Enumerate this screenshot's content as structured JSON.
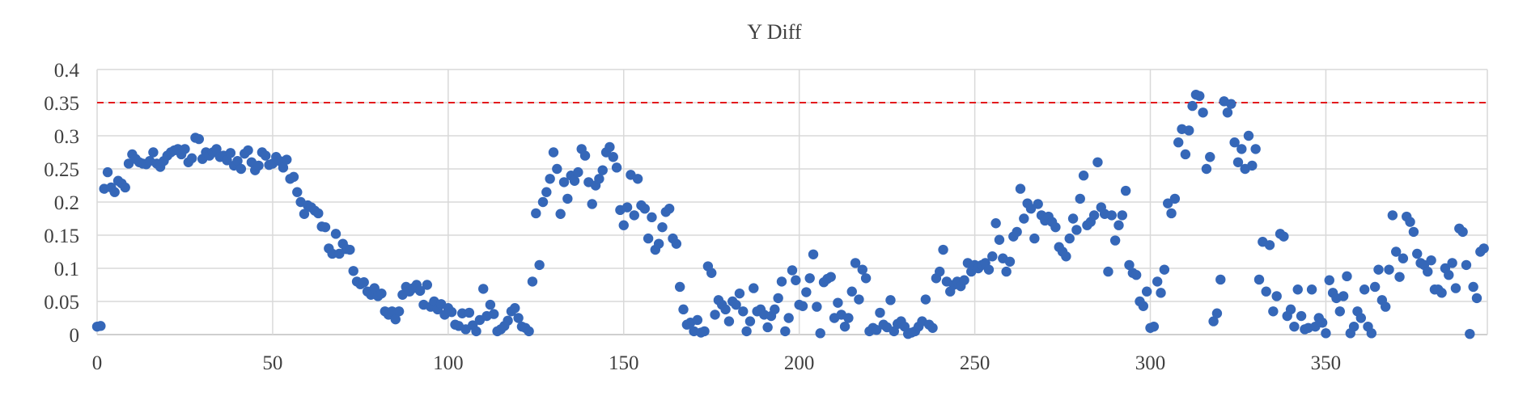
{
  "chart_data": {
    "type": "scatter",
    "title": "Y Diff",
    "xlabel": "",
    "ylabel": "",
    "xlim": [
      0,
      396
    ],
    "ylim": [
      0,
      0.4
    ],
    "x_ticks": [
      0,
      50,
      100,
      150,
      200,
      250,
      300,
      350
    ],
    "x_tick_labels": [
      "0",
      "50",
      "100",
      "150",
      "200",
      "250",
      "300",
      "350"
    ],
    "y_ticks": [
      0,
      0.05,
      0.1,
      0.15,
      0.2,
      0.25,
      0.3,
      0.35,
      0.4
    ],
    "y_tick_labels": [
      "0",
      "0.05",
      "0.1",
      "0.15",
      "0.2",
      "0.25",
      "0.3",
      "0.35",
      "0.4"
    ],
    "grid": true,
    "legend": "none",
    "threshold": 0.35,
    "colors": {
      "points": "#3567b8",
      "threshold": "#e31a1c",
      "grid": "#d9d9d9"
    },
    "series": [
      {
        "x": [
          0,
          1,
          2,
          3,
          4,
          5,
          6,
          7,
          8,
          9,
          10,
          11,
          12,
          13,
          14,
          15,
          16,
          17,
          18,
          19,
          20,
          21,
          22,
          23,
          24,
          25,
          26,
          27,
          28,
          29,
          30,
          31,
          32,
          33,
          34,
          35,
          36,
          37,
          38,
          39,
          40,
          41,
          42,
          43,
          44,
          45,
          46,
          47,
          48,
          49,
          50,
          51,
          52,
          53,
          54,
          55,
          56,
          57,
          58,
          59,
          60,
          61,
          62,
          63,
          64,
          65,
          66,
          67,
          68,
          69,
          70,
          71,
          72,
          73,
          74,
          75,
          76,
          77,
          78,
          79,
          80,
          81,
          82,
          83,
          84,
          85,
          86,
          87,
          88,
          89,
          90,
          91,
          92,
          93,
          94,
          95,
          96,
          97,
          98,
          99,
          100,
          101,
          102,
          103,
          104,
          105,
          106,
          107,
          108,
          109,
          110,
          111,
          112,
          113,
          114,
          115,
          116,
          117,
          118,
          119,
          120,
          121,
          122,
          123,
          124,
          125,
          126,
          127,
          128,
          129,
          130,
          131,
          132,
          133,
          134,
          135,
          136,
          137,
          138,
          139,
          140,
          141,
          142,
          143,
          144,
          145,
          146,
          147,
          148,
          149,
          150,
          151,
          152,
          153,
          154,
          155,
          156,
          157,
          158,
          159,
          160,
          161,
          162,
          163,
          164,
          165,
          166,
          167,
          168,
          169,
          170,
          171,
          172,
          173,
          174,
          175,
          176,
          177,
          178,
          179,
          180,
          181,
          182,
          183,
          184,
          185,
          186,
          187,
          188,
          189,
          190,
          191,
          192,
          193,
          194,
          195,
          196,
          197,
          198,
          199,
          200,
          201,
          202,
          203,
          204,
          205,
          206,
          207,
          208,
          209,
          210,
          211,
          212,
          213,
          214,
          215,
          216,
          217,
          218,
          219,
          220,
          221,
          222,
          223,
          224,
          225,
          226,
          227,
          228,
          229,
          230,
          231,
          232,
          233,
          234,
          235,
          236,
          237,
          238,
          239,
          240,
          241,
          242,
          243,
          244,
          245,
          246,
          247,
          248,
          249,
          250,
          251,
          252,
          253,
          254,
          255,
          256,
          257,
          258,
          259,
          260,
          261,
          262,
          263,
          264,
          265,
          266,
          267,
          268,
          269,
          270,
          271,
          272,
          273,
          274,
          275,
          276,
          277,
          278,
          279,
          280,
          281,
          282,
          283,
          284,
          285,
          286,
          287,
          288,
          289,
          290,
          291,
          292,
          293,
          294,
          295,
          296,
          297,
          298,
          299,
          300,
          301,
          302,
          303,
          304,
          305,
          306,
          307,
          308,
          309,
          310,
          311,
          312,
          313,
          314,
          315,
          316,
          317,
          318,
          319,
          320,
          321,
          322,
          323,
          324,
          325,
          326,
          327,
          328,
          329,
          330,
          331,
          332,
          333,
          334,
          335,
          336,
          337,
          338,
          339,
          340,
          341,
          342,
          343,
          344,
          345,
          346,
          347,
          348,
          349,
          350,
          351,
          352,
          353,
          354,
          355,
          356,
          357,
          358,
          359,
          360,
          361,
          362,
          363,
          364,
          365,
          366,
          367,
          368,
          369,
          370,
          371,
          372,
          373,
          374,
          375,
          376,
          377,
          378,
          379,
          380,
          381,
          382,
          383,
          384,
          385,
          386,
          387,
          388,
          389,
          390,
          391,
          392,
          393,
          394,
          395
        ],
        "y": [
          0.012,
          0.013,
          0.22,
          0.245,
          0.222,
          0.215,
          0.232,
          0.228,
          0.222,
          0.258,
          0.272,
          0.265,
          0.26,
          0.258,
          0.257,
          0.262,
          0.275,
          0.258,
          0.253,
          0.262,
          0.27,
          0.275,
          0.278,
          0.28,
          0.272,
          0.28,
          0.26,
          0.266,
          0.297,
          0.295,
          0.265,
          0.275,
          0.27,
          0.275,
          0.28,
          0.268,
          0.27,
          0.263,
          0.274,
          0.255,
          0.262,
          0.25,
          0.273,
          0.278,
          0.26,
          0.248,
          0.255,
          0.275,
          0.27,
          0.256,
          0.258,
          0.268,
          0.262,
          0.252,
          0.264,
          0.235,
          0.238,
          0.215,
          0.2,
          0.182,
          0.195,
          0.192,
          0.187,
          0.183,
          0.163,
          0.162,
          0.13,
          0.122,
          0.152,
          0.122,
          0.137,
          0.129,
          0.128,
          0.096,
          0.08,
          0.076,
          0.079,
          0.065,
          0.06,
          0.07,
          0.058,
          0.062,
          0.035,
          0.03,
          0.035,
          0.023,
          0.035,
          0.06,
          0.072,
          0.065,
          0.07,
          0.075,
          0.066,
          0.045,
          0.075,
          0.042,
          0.05,
          0.038,
          0.046,
          0.03,
          0.04,
          0.034,
          0.015,
          0.013,
          0.032,
          0.008,
          0.033,
          0.014,
          0.005,
          0.022,
          0.069,
          0.028,
          0.045,
          0.031,
          0.005,
          0.008,
          0.013,
          0.021,
          0.035,
          0.04,
          0.025,
          0.012,
          0.01,
          0.005,
          0.08,
          0.183,
          0.105,
          0.2,
          0.215,
          0.235,
          0.275,
          0.25,
          0.182,
          0.23,
          0.205,
          0.24,
          0.232,
          0.245,
          0.28,
          0.27,
          0.23,
          0.197,
          0.225,
          0.235,
          0.248,
          0.275,
          0.283,
          0.268,
          0.252,
          0.188,
          0.165,
          0.192,
          0.241,
          0.18,
          0.235,
          0.195,
          0.19,
          0.145,
          0.177,
          0.128,
          0.137,
          0.162,
          0.185,
          0.19,
          0.145,
          0.137,
          0.072,
          0.038,
          0.015,
          0.018,
          0.005,
          0.022,
          0.003,
          0.005,
          0.103,
          0.093,
          0.03,
          0.052,
          0.045,
          0.038,
          0.02,
          0.05,
          0.045,
          0.062,
          0.035,
          0.005,
          0.02,
          0.07,
          0.035,
          0.038,
          0.03,
          0.011,
          0.028,
          0.038,
          0.055,
          0.08,
          0.005,
          0.025,
          0.097,
          0.082,
          0.045,
          0.043,
          0.064,
          0.085,
          0.121,
          0.042,
          0.002,
          0.079,
          0.084,
          0.087,
          0.025,
          0.048,
          0.03,
          0.012,
          0.025,
          0.065,
          0.108,
          0.053,
          0.098,
          0.085,
          0.005,
          0.01,
          0.007,
          0.033,
          0.015,
          0.011,
          0.052,
          0.005,
          0.016,
          0.02,
          0.012,
          0.001,
          0.003,
          0.005,
          0.012,
          0.02,
          0.053,
          0.015,
          0.01,
          0.085,
          0.095,
          0.128,
          0.08,
          0.065,
          0.075,
          0.08,
          0.073,
          0.082,
          0.108,
          0.095,
          0.105,
          0.1,
          0.105,
          0.108,
          0.098,
          0.118,
          0.168,
          0.143,
          0.115,
          0.095,
          0.11,
          0.148,
          0.155,
          0.22,
          0.175,
          0.198,
          0.19,
          0.145,
          0.197,
          0.18,
          0.172,
          0.178,
          0.17,
          0.162,
          0.132,
          0.125,
          0.118,
          0.145,
          0.175,
          0.158,
          0.205,
          0.24,
          0.165,
          0.17,
          0.18,
          0.26,
          0.192,
          0.182,
          0.095,
          0.18,
          0.142,
          0.165,
          0.18,
          0.217,
          0.105,
          0.093,
          0.09,
          0.05,
          0.043,
          0.065,
          0.01,
          0.012,
          0.08,
          0.063,
          0.098,
          0.198,
          0.183,
          0.205,
          0.29,
          0.31,
          0.272,
          0.308,
          0.345,
          0.362,
          0.36,
          0.335,
          0.25,
          0.268,
          0.02,
          0.032,
          0.083,
          0.352,
          0.335,
          0.348,
          0.29,
          0.26,
          0.28,
          0.25,
          0.3,
          0.255,
          0.28,
          0.083,
          0.14,
          0.065,
          0.135,
          0.035,
          0.058,
          0.152,
          0.148,
          0.028,
          0.038,
          0.012,
          0.068,
          0.028,
          0.008,
          0.01,
          0.068,
          0.012,
          0.025,
          0.018,
          0.002,
          0.082,
          0.063,
          0.055,
          0.035,
          0.058,
          0.088,
          0.002,
          0.012,
          0.035,
          0.025,
          0.068,
          0.012,
          0.002,
          0.072,
          0.098,
          0.052,
          0.042,
          0.098,
          0.18,
          0.125,
          0.087,
          0.115,
          0.178,
          0.17,
          0.155,
          0.122,
          0.108,
          0.105,
          0.095,
          0.112,
          0.068,
          0.068,
          0.063,
          0.1,
          0.09,
          0.108,
          0.07,
          0.16,
          0.155,
          0.105,
          0.001,
          0.072,
          0.055,
          0.125,
          0.13
        ]
      }
    ]
  }
}
